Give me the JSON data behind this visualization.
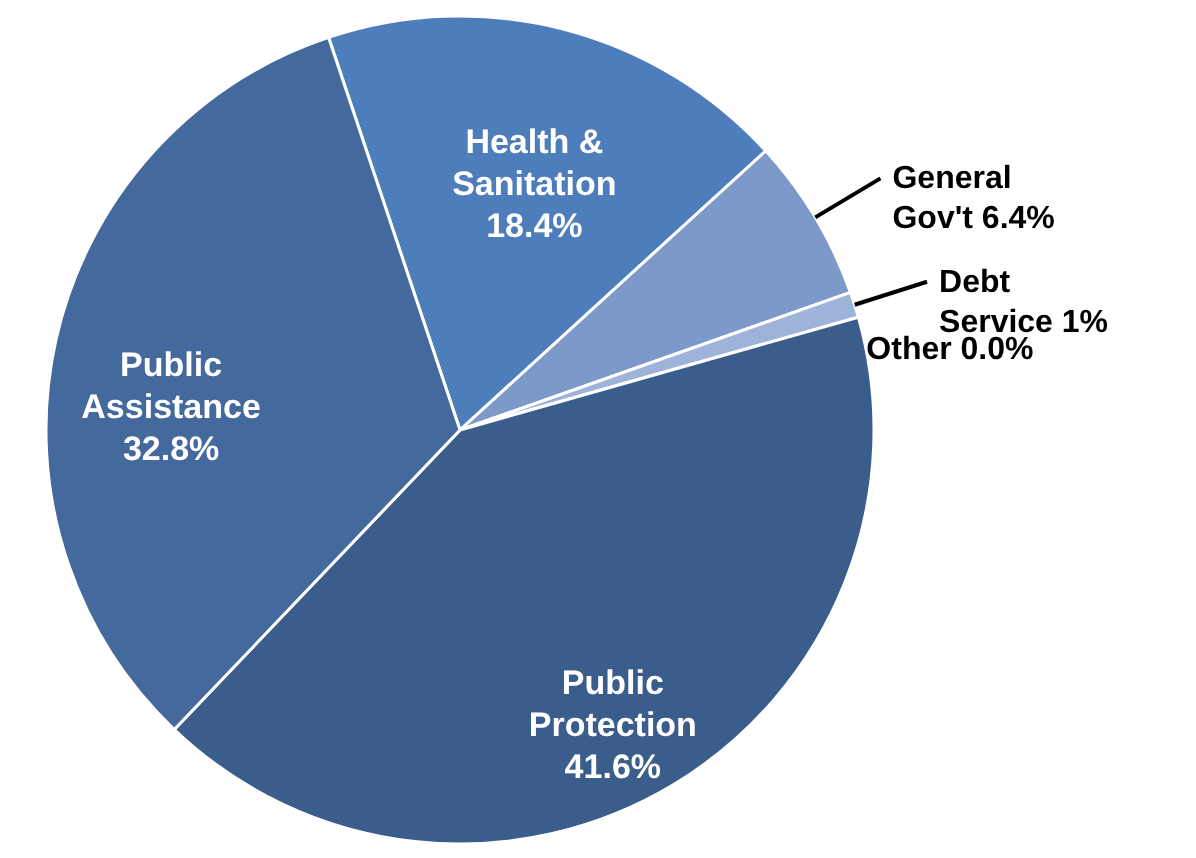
{
  "chart_data": {
    "type": "pie",
    "categories": [
      "Health & Sanitation",
      "General Gov't",
      "Debt Service",
      "Other",
      "Public Protection",
      "Public Assistance"
    ],
    "values": [
      18.4,
      6.4,
      1,
      0.0,
      41.6,
      32.8
    ],
    "colors": [
      "#4d7ebb",
      "#7c99c9",
      "#9db3d9",
      "#dbe3f0",
      "#3b5d8c",
      "#44699c"
    ],
    "value_labels": [
      "18.4%",
      "6.4%",
      "1%",
      "0.0%",
      "41.6%",
      "32.8%"
    ]
  }
}
